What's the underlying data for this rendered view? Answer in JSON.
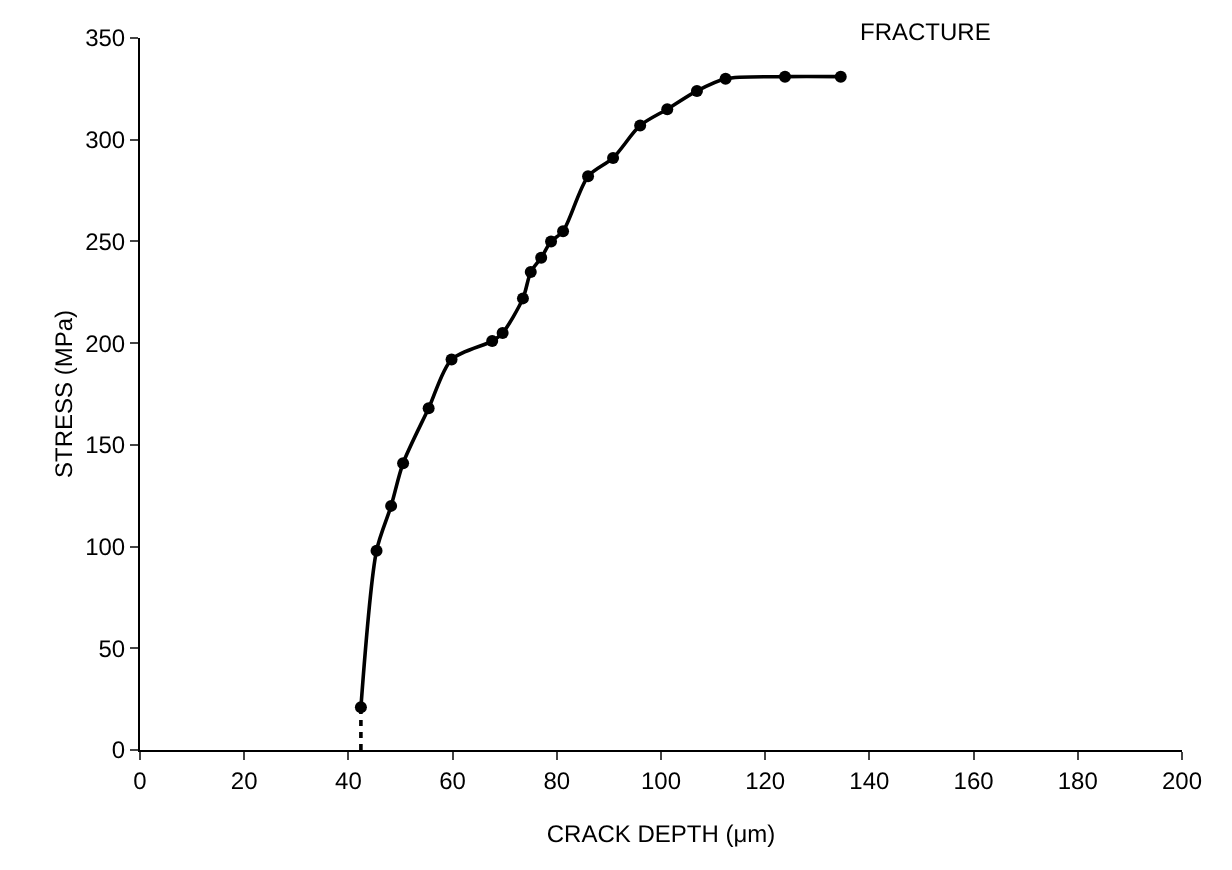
{
  "chart_data": {
    "type": "line",
    "xlabel": "CRACK DEPTH (μm)",
    "ylabel": "STRESS (MPa)",
    "xlim": [
      0,
      200
    ],
    "xticks": [
      0,
      20,
      40,
      60,
      80,
      100,
      120,
      140,
      160,
      180,
      200
    ],
    "ylim": [
      0,
      350
    ],
    "yticks": [
      0,
      50,
      100,
      150,
      200,
      250,
      300,
      350
    ],
    "marker": "circle",
    "series": [
      {
        "color": "#000000",
        "x": [
          42.4,
          45.4,
          48.2,
          50.5,
          55.4,
          59.8,
          67.6,
          69.6,
          73.5,
          75.0,
          77.0,
          78.9,
          81.2,
          86.0,
          90.8,
          96.0,
          101.2,
          106.9,
          112.4,
          123.8,
          134.5
        ],
        "values": [
          21,
          98,
          120,
          141,
          168,
          192,
          201,
          205,
          222,
          235,
          242,
          250,
          255,
          282,
          291,
          307,
          315,
          324,
          330,
          331,
          331
        ]
      },
      {
        "type": "line",
        "color": "#000000",
        "marker": "none",
        "line_style": "dotted",
        "x": [
          42.4,
          42.4
        ],
        "values": [
          0,
          21
        ]
      }
    ],
    "annotations": [
      {
        "text": "FRACTURE",
        "x": 134.5,
        "y": 331.4
      }
    ]
  }
}
